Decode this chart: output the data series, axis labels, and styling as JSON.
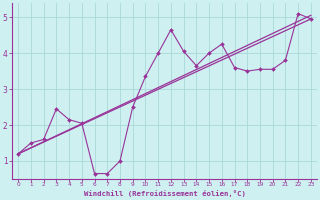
{
  "x": [
    0,
    1,
    2,
    3,
    4,
    5,
    6,
    7,
    8,
    9,
    10,
    11,
    12,
    13,
    14,
    15,
    16,
    17,
    18,
    19,
    20,
    21,
    22,
    23
  ],
  "y_scatter": [
    1.2,
    1.5,
    1.6,
    2.45,
    2.15,
    2.05,
    0.65,
    0.65,
    1.0,
    2.5,
    3.35,
    4.0,
    4.65,
    4.05,
    3.65,
    4.0,
    4.25,
    3.6,
    3.5,
    3.55,
    3.55,
    3.8,
    5.1,
    4.95
  ],
  "bg_color": "#cef0f0",
  "grid_color": "#a8d8d8",
  "line_color": "#993399",
  "xlabel": "Windchill (Refroidissement éolien,°C)",
  "ylim": [
    0.5,
    5.4
  ],
  "xlim": [
    -0.5,
    23.5
  ],
  "yticks": [
    1,
    2,
    3,
    4,
    5
  ],
  "xticks": [
    0,
    1,
    2,
    3,
    4,
    5,
    6,
    7,
    8,
    9,
    10,
    11,
    12,
    13,
    14,
    15,
    16,
    17,
    18,
    19,
    20,
    21,
    22,
    23
  ]
}
